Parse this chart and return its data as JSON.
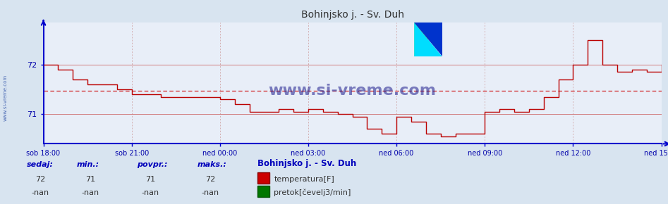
{
  "title": "Bohinjsko j. - Sv. Duh",
  "bg_color": "#d8e4f0",
  "plot_bg_color": "#e8eef8",
  "line_color": "#bb0000",
  "line_color2": "#007700",
  "axis_color": "#0000cc",
  "grid_color_v": "#cc9999",
  "grid_color_h": "#cc6666",
  "tick_label_color": "#0000aa",
  "title_color": "#333333",
  "avg_line_color": "#cc0000",
  "x_start": 0,
  "x_end": 1260,
  "y_min": 70.4,
  "y_max": 72.85,
  "yticks": [
    71,
    72
  ],
  "avg_value": 71.47,
  "x_tick_positions": [
    0,
    180,
    360,
    540,
    720,
    900,
    1080,
    1260
  ],
  "x_tick_labels": [
    "sob 18:00",
    "sob 21:00",
    "ned 00:00",
    "ned 03:00",
    "ned 06:00",
    "ned 09:00",
    "ned 12:00",
    "ned 15:00"
  ],
  "sedaj": 72,
  "min_val": 71,
  "povpr_val": 71,
  "maks_val": 72,
  "label_sedaj": "sedaj:",
  "label_min": "min.:",
  "label_povpr": "povpr.:",
  "label_maks": "maks.:",
  "legend_title": "Bohinjsko j. - Sv. Duh",
  "legend_item1": "temperatura[F]",
  "legend_item2": "pretok[čevelj3/min]",
  "val_sedaj2": "-nan",
  "val_min2": "-nan",
  "val_povpr2": "-nan",
  "val_maks2": "-nan",
  "temperature_x": [
    0,
    30,
    60,
    90,
    150,
    180,
    240,
    360,
    390,
    420,
    480,
    510,
    540,
    570,
    600,
    630,
    660,
    690,
    720,
    750,
    780,
    810,
    840,
    870,
    900,
    930,
    960,
    990,
    1020,
    1050,
    1080,
    1110,
    1140,
    1170,
    1200,
    1230,
    1260
  ],
  "temperature_y": [
    72.0,
    71.9,
    71.7,
    71.6,
    71.5,
    71.4,
    71.35,
    71.3,
    71.2,
    71.05,
    71.1,
    71.05,
    71.1,
    71.05,
    71.0,
    70.95,
    70.7,
    70.6,
    70.95,
    70.85,
    70.6,
    70.55,
    70.6,
    70.6,
    71.05,
    71.1,
    71.05,
    71.1,
    71.35,
    71.7,
    72.0,
    72.5,
    72.0,
    71.85,
    71.9,
    71.85,
    72.0
  ]
}
